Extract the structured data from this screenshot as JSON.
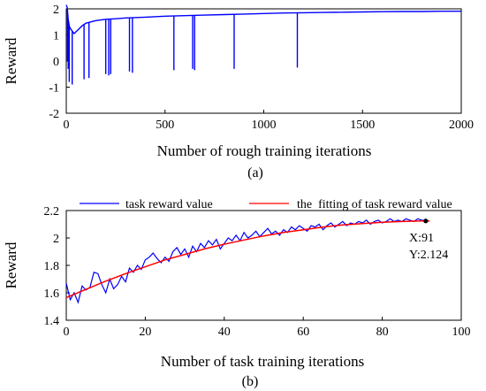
{
  "chart_data": [
    {
      "type": "line",
      "caption": "(a)",
      "xlabel": "Number of rough training iterations",
      "ylabel": "Reward",
      "xlim": [
        0,
        2000
      ],
      "ylim": [
        -2,
        2
      ],
      "xticks": [
        "0",
        "500",
        "1000",
        "1500",
        "2000"
      ],
      "yticks": [
        "-2",
        "-1",
        "0",
        "1",
        "2"
      ],
      "grid": false,
      "color": "#0000ff",
      "series": [
        {
          "x": [
            0,
            5,
            10,
            15,
            20,
            40,
            60,
            80,
            100,
            150,
            200,
            250,
            300,
            400,
            500,
            600,
            700,
            800,
            900,
            1000,
            1100,
            1200,
            1300,
            1400,
            1500,
            1600,
            1700,
            1800,
            1900,
            2000
          ],
          "values": [
            2.15,
            2.05,
            1.6,
            1.35,
            1.25,
            1.05,
            1.2,
            1.35,
            1.45,
            1.55,
            1.6,
            1.62,
            1.65,
            1.68,
            1.72,
            1.74,
            1.76,
            1.78,
            1.8,
            1.82,
            1.84,
            1.85,
            1.86,
            1.87,
            1.88,
            1.89,
            1.9,
            1.9,
            1.91,
            1.91
          ]
        }
      ],
      "dips": [
        {
          "x": 6,
          "y": 0.0
        },
        {
          "x": 10,
          "y": -0.3
        },
        {
          "x": 15,
          "y": -0.8
        },
        {
          "x": 30,
          "y": -0.9
        },
        {
          "x": 90,
          "y": -0.7
        },
        {
          "x": 115,
          "y": -0.65
        },
        {
          "x": 200,
          "y": -0.5
        },
        {
          "x": 215,
          "y": -0.55
        },
        {
          "x": 225,
          "y": -0.5
        },
        {
          "x": 320,
          "y": -0.4
        },
        {
          "x": 335,
          "y": -0.45
        },
        {
          "x": 545,
          "y": -0.35
        },
        {
          "x": 640,
          "y": -0.3
        },
        {
          "x": 650,
          "y": -0.35
        },
        {
          "x": 850,
          "y": -0.3
        },
        {
          "x": 1170,
          "y": -0.25
        }
      ]
    },
    {
      "type": "line",
      "caption": "(b)",
      "xlabel": "Number of task training iterations",
      "ylabel": "Reward",
      "xlim": [
        0,
        100
      ],
      "ylim": [
        1.4,
        2.2
      ],
      "xticks": [
        "0",
        "20",
        "40",
        "60",
        "80",
        "100"
      ],
      "yticks": [
        "1.4",
        "1.6",
        "1.8",
        "2",
        "2.2"
      ],
      "grid": false,
      "legend_position": "top",
      "series": [
        {
          "name": "task reward value",
          "color": "#0000ff",
          "x": [
            0,
            1,
            2,
            3,
            4,
            5,
            6,
            7,
            8,
            9,
            10,
            11,
            12,
            13,
            14,
            15,
            16,
            17,
            18,
            19,
            20,
            21,
            22,
            23,
            24,
            25,
            26,
            27,
            28,
            29,
            30,
            31,
            32,
            33,
            34,
            35,
            36,
            37,
            38,
            39,
            40,
            41,
            42,
            43,
            44,
            45,
            46,
            47,
            48,
            49,
            50,
            51,
            52,
            53,
            54,
            55,
            56,
            57,
            58,
            59,
            60,
            61,
            62,
            63,
            64,
            65,
            66,
            67,
            68,
            69,
            70,
            71,
            72,
            73,
            74,
            75,
            76,
            77,
            78,
            79,
            80,
            81,
            82,
            83,
            84,
            85,
            86,
            87,
            88,
            89,
            90,
            91
          ],
          "values": [
            1.67,
            1.55,
            1.6,
            1.53,
            1.65,
            1.62,
            1.64,
            1.75,
            1.74,
            1.66,
            1.6,
            1.7,
            1.63,
            1.66,
            1.72,
            1.68,
            1.78,
            1.75,
            1.8,
            1.77,
            1.84,
            1.86,
            1.89,
            1.85,
            1.82,
            1.86,
            1.83,
            1.9,
            1.93,
            1.88,
            1.92,
            1.86,
            1.94,
            1.9,
            1.96,
            1.93,
            1.98,
            1.95,
            1.99,
            1.92,
            1.96,
            2.0,
            1.98,
            2.02,
            1.98,
            2.04,
            2.0,
            2.02,
            2.05,
            2.01,
            2.04,
            2.07,
            2.03,
            2.05,
            2.02,
            2.06,
            2.04,
            2.08,
            2.06,
            2.09,
            2.07,
            2.05,
            2.09,
            2.08,
            2.1,
            2.06,
            2.09,
            2.11,
            2.08,
            2.1,
            2.12,
            2.09,
            2.11,
            2.1,
            2.12,
            2.11,
            2.13,
            2.1,
            2.12,
            2.13,
            2.11,
            2.12,
            2.14,
            2.12,
            2.13,
            2.12,
            2.14,
            2.13,
            2.12,
            2.14,
            2.13,
            2.124
          ]
        },
        {
          "name": "the  fitting of task reward value",
          "color": "#ff0000",
          "x": [
            0,
            5,
            10,
            15,
            20,
            25,
            30,
            35,
            40,
            45,
            50,
            55,
            60,
            65,
            70,
            75,
            80,
            85,
            90,
            92
          ],
          "values": [
            1.565,
            1.625,
            1.685,
            1.74,
            1.79,
            1.84,
            1.88,
            1.92,
            1.955,
            1.985,
            2.015,
            2.04,
            2.06,
            2.08,
            2.095,
            2.105,
            2.115,
            2.12,
            2.124,
            2.124
          ]
        }
      ],
      "annotation": {
        "x_label": "X:91",
        "y_label": "Y:2.124",
        "x": 91,
        "y": 2.124
      }
    }
  ]
}
